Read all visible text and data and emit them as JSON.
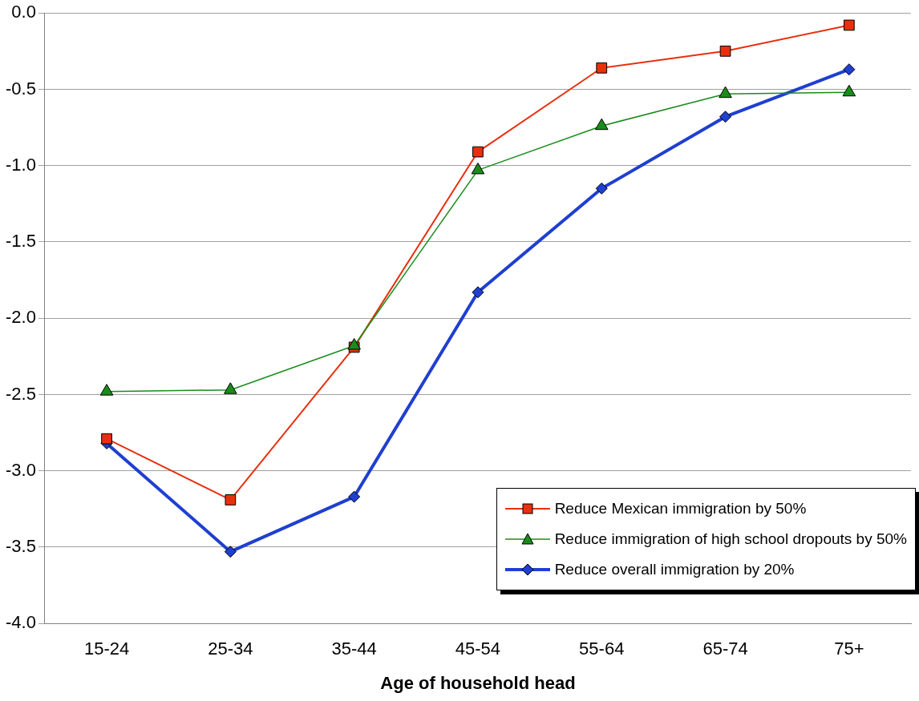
{
  "chart_data": {
    "type": "line",
    "xlabel": "Age of household head",
    "categories": [
      "15-24",
      "25-34",
      "35-44",
      "45-54",
      "55-64",
      "65-74",
      "75+"
    ],
    "ylim": [
      -4,
      0
    ],
    "yticks": [
      {
        "value": -4,
        "label": "-4.0"
      },
      -3.5,
      {
        "value": -3,
        "label": "-3.0"
      },
      -2.5,
      {
        "value": -2,
        "label": "-2.0"
      },
      -1.5,
      {
        "value": -1,
        "label": "-1.0"
      },
      -0.5,
      {
        "value": 0,
        "label": "0.0"
      }
    ],
    "grid": "y",
    "legend": "bottom right",
    "series": [
      {
        "name": "Reduce Mexican immigration by 50%",
        "color": "#e8300f",
        "marker": "square",
        "values": [
          -2.79,
          -3.19,
          -2.19,
          -0.91,
          -0.36,
          -0.25,
          -0.08
        ]
      },
      {
        "name": "Reduce immigration of high school dropouts by 50%",
        "color": "#1a8c1a",
        "marker": "triangle",
        "values": [
          -2.48,
          -2.47,
          -2.18,
          -1.03,
          -0.74,
          -0.53,
          -0.52
        ]
      },
      {
        "name": "Reduce overall immigration by 20%",
        "color": "#1f3fd0",
        "marker": "diamond",
        "values": [
          -2.82,
          -3.53,
          -3.17,
          -1.83,
          -1.15,
          -0.68,
          -0.37
        ]
      }
    ]
  }
}
